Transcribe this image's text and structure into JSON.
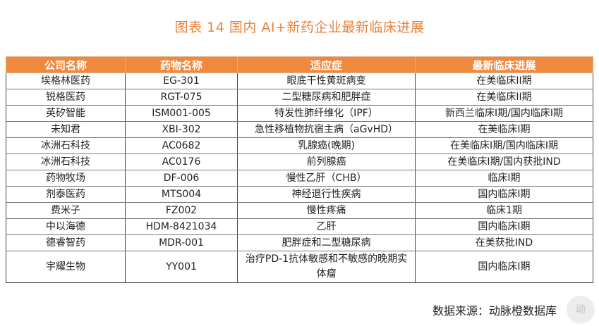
{
  "title": "图表 14 国内 AI+新药企业最新临床进展",
  "table": {
    "headers": [
      "公司名称",
      "药物名称",
      "适应症",
      "最新临床进展"
    ],
    "rows": [
      [
        "埃格林医药",
        "EG-301",
        "眼底干性黄斑病变",
        "在美临床II期"
      ],
      [
        "锐格医药",
        "RGT-075",
        "二型糖尿病和肥胖症",
        "在美临床II期"
      ],
      [
        "英矽智能",
        "ISM001-005",
        "特发性肺纤维化（IPF）",
        "新西兰临床I期/国内临床I期"
      ],
      [
        "未知君",
        "XBI-302",
        "急性移植物抗宿主病（aGvHD）",
        "在美临床I期"
      ],
      [
        "冰洲石科技",
        "AC0682",
        "乳腺癌(晚期)",
        "在美临床I期/国内临床I期"
      ],
      [
        "冰洲石科技",
        "AC0176",
        "前列腺癌",
        "在美临床I期/国内获批IND"
      ],
      [
        "药物牧场",
        "DF-006",
        "慢性乙肝（CHB）",
        "临床I期"
      ],
      [
        "剂泰医药",
        "MTS004",
        "神经退行性疾病",
        "国内临床I期"
      ],
      [
        "费米子",
        "FZ002",
        "慢性疼痛",
        "临床1期"
      ],
      [
        "中以海德",
        "HDM-8421034",
        "乙肝",
        "国内临床I期"
      ],
      [
        "德睿智药",
        "MDR-001",
        "肥胖症和二型糖尿病",
        "在美获批IND"
      ],
      [
        "宇耀生物",
        "YY001",
        "治疗PD-1抗体敏感和不敏感的晚期实体瘤",
        "国内临床I期"
      ]
    ]
  },
  "source": "数据来源：动脉橙数据库",
  "watermark": "动"
}
